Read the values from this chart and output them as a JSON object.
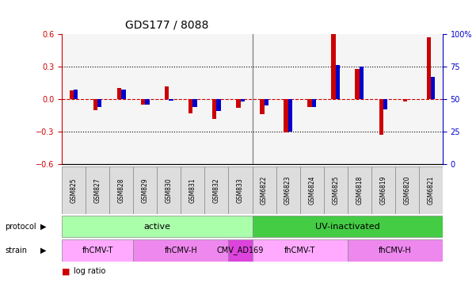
{
  "title": "GDS177 / 8088",
  "samples": [
    "GSM825",
    "GSM827",
    "GSM828",
    "GSM829",
    "GSM830",
    "GSM831",
    "GSM832",
    "GSM833",
    "GSM6822",
    "GSM6823",
    "GSM6824",
    "GSM6825",
    "GSM6818",
    "GSM6819",
    "GSM6820",
    "GSM6821"
  ],
  "log_ratio": [
    0.08,
    -0.1,
    0.1,
    -0.05,
    0.12,
    -0.13,
    -0.18,
    -0.08,
    -0.14,
    -0.31,
    -0.07,
    0.61,
    0.28,
    -0.33,
    -0.02,
    0.57
  ],
  "pct_rank": [
    57,
    44,
    57,
    46,
    49,
    44,
    41,
    48,
    45,
    25,
    44,
    76,
    75,
    42,
    50,
    67
  ],
  "protocol_groups": [
    {
      "label": "active",
      "start": 0,
      "end": 8,
      "color": "#aaffaa"
    },
    {
      "label": "UV-inactivated",
      "start": 8,
      "end": 16,
      "color": "#44cc44"
    }
  ],
  "strain_groups": [
    {
      "label": "fhCMV-T",
      "start": 0,
      "end": 3,
      "color": "#ffaaff"
    },
    {
      "label": "fhCMV-H",
      "start": 3,
      "end": 7,
      "color": "#ee88ee"
    },
    {
      "label": "CMV_AD169",
      "start": 7,
      "end": 8,
      "color": "#dd44dd"
    },
    {
      "label": "fhCMV-T",
      "start": 8,
      "end": 12,
      "color": "#ffaaff"
    },
    {
      "label": "fhCMV-H",
      "start": 12,
      "end": 16,
      "color": "#ee88ee"
    }
  ],
  "ylim_left": [
    -0.6,
    0.6
  ],
  "ylim_right": [
    0,
    100
  ],
  "yticks_left": [
    -0.6,
    -0.3,
    0.0,
    0.3,
    0.6
  ],
  "yticks_right": [
    0,
    25,
    50,
    75,
    100
  ],
  "bar_width": 0.35,
  "red_color": "#cc0000",
  "blue_color": "#0000cc",
  "pct_ref": 50,
  "bg_color": "#ffffff",
  "grid_color": "#000000",
  "plot_bg": "#f5f5f5"
}
